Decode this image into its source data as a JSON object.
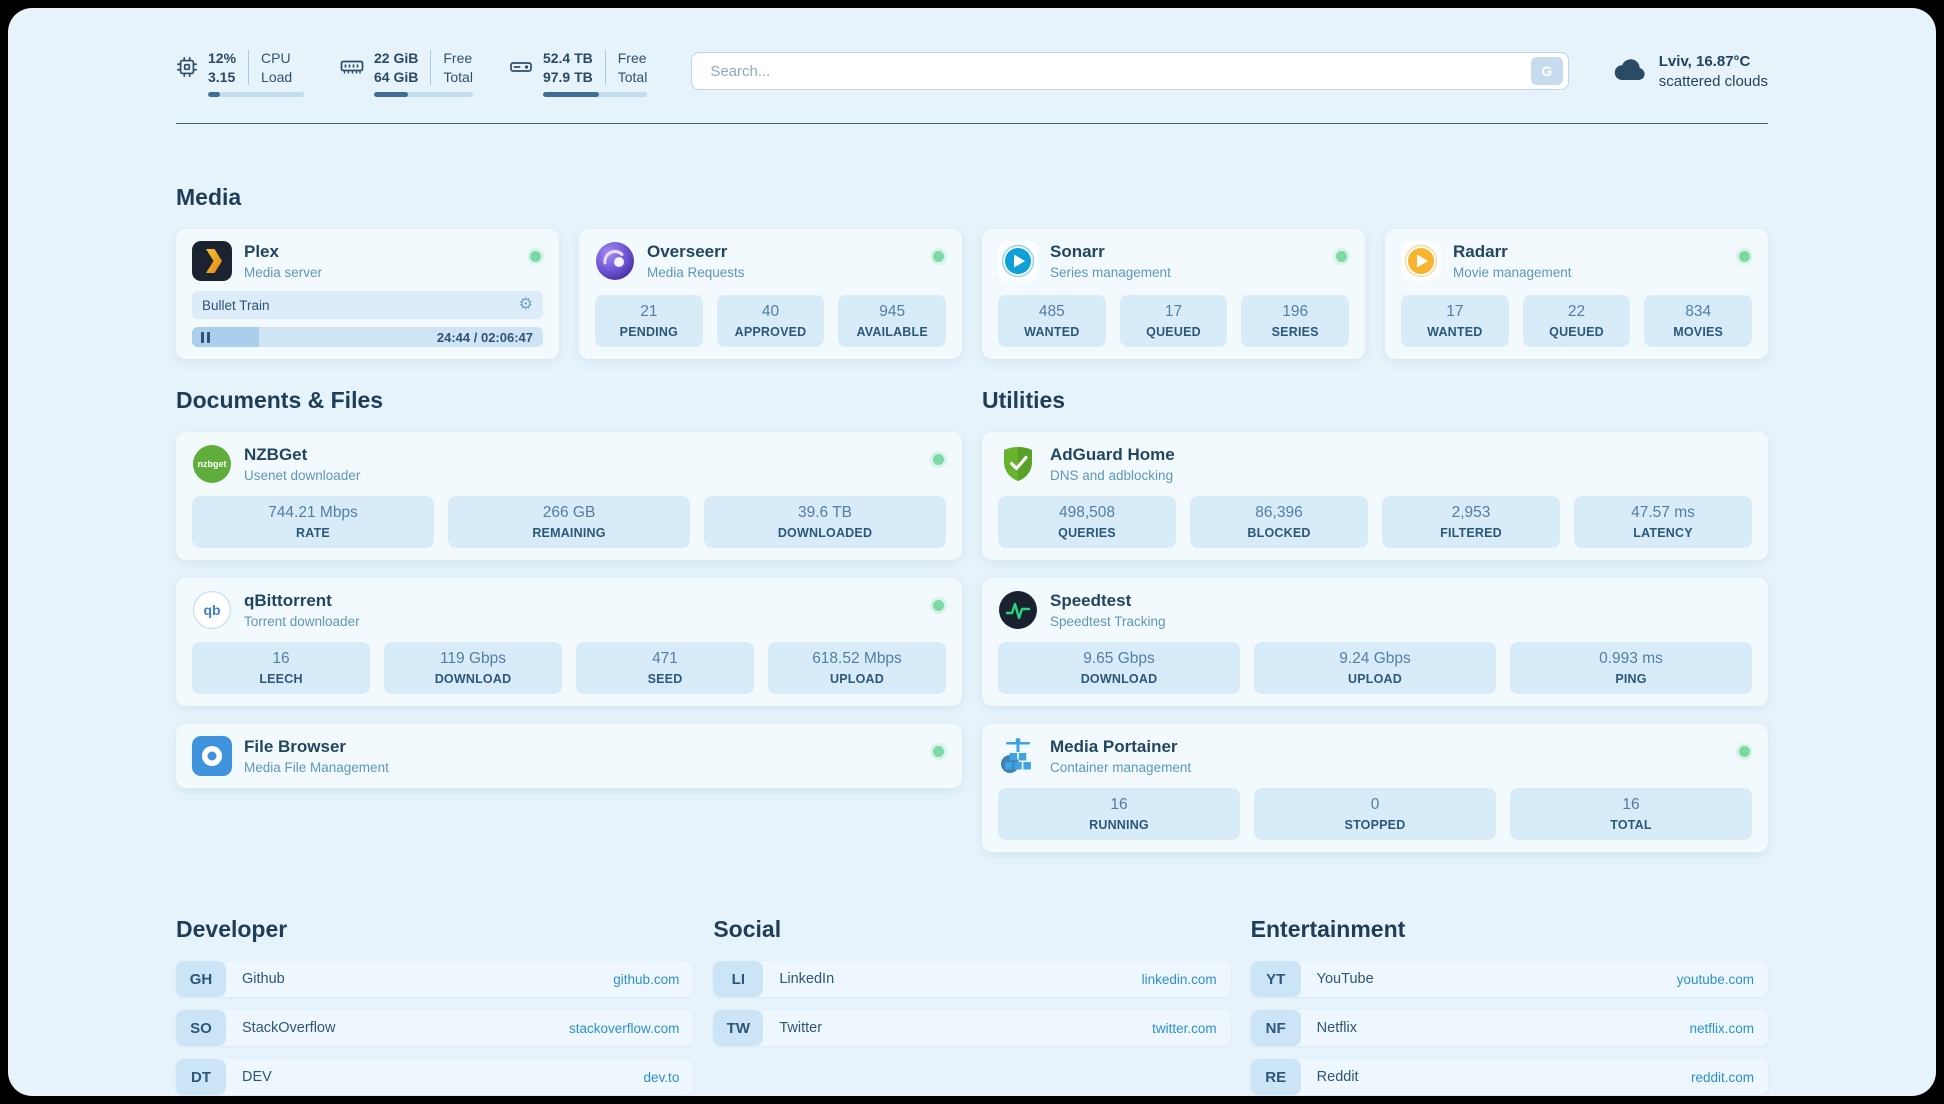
{
  "icons": {
    "gear": "⚙"
  },
  "topbar": {
    "cpu": {
      "value1": "12%",
      "value2": "3.15",
      "label1": "CPU",
      "label2": "Load",
      "percent": 12
    },
    "ram": {
      "value1": "22 GiB",
      "value2": "64 GiB",
      "label1": "Free",
      "label2": "Total",
      "percent": 34
    },
    "disk": {
      "value1": "52.4 TB",
      "value2": "97.9 TB",
      "label1": "Free",
      "label2": "Total",
      "percent": 54
    },
    "search": {
      "placeholder": "Search...",
      "button_label": "G"
    },
    "weather": {
      "location": "Lviv, 16.87°C",
      "condition": "scattered clouds"
    }
  },
  "media": {
    "title": "Media",
    "plex": {
      "name": "Plex",
      "subtitle": "Media server",
      "now_playing": "Bullet Train",
      "time": "24:44 / 02:06:47",
      "percent": 19
    },
    "overseerr": {
      "name": "Overseerr",
      "subtitle": "Media Requests",
      "stats": [
        {
          "value": "21",
          "label": "PENDING"
        },
        {
          "value": "40",
          "label": "APPROVED"
        },
        {
          "value": "945",
          "label": "AVAILABLE"
        }
      ]
    },
    "sonarr": {
      "name": "Sonarr",
      "subtitle": "Series management",
      "stats": [
        {
          "value": "485",
          "label": "WANTED"
        },
        {
          "value": "17",
          "label": "QUEUED"
        },
        {
          "value": "196",
          "label": "SERIES"
        }
      ]
    },
    "radarr": {
      "name": "Radarr",
      "subtitle": "Movie management",
      "stats": [
        {
          "value": "17",
          "label": "WANTED"
        },
        {
          "value": "22",
          "label": "QUEUED"
        },
        {
          "value": "834",
          "label": "MOVIES"
        }
      ]
    }
  },
  "documents": {
    "title": "Documents & Files",
    "nzbget": {
      "name": "NZBGet",
      "subtitle": "Usenet downloader",
      "stats": [
        {
          "value": "744.21 Mbps",
          "label": "RATE"
        },
        {
          "value": "266 GB",
          "label": "REMAINING"
        },
        {
          "value": "39.6 TB",
          "label": "DOWNLOADED"
        }
      ]
    },
    "qbittorrent": {
      "name": "qBittorrent",
      "subtitle": "Torrent downloader",
      "stats": [
        {
          "value": "16",
          "label": "LEECH"
        },
        {
          "value": "119 Gbps",
          "label": "DOWNLOAD"
        },
        {
          "value": "471",
          "label": "SEED"
        },
        {
          "value": "618.52 Mbps",
          "label": "UPLOAD"
        }
      ]
    },
    "filebrowser": {
      "name": "File Browser",
      "subtitle": "Media File Management"
    }
  },
  "utilities": {
    "title": "Utilities",
    "adguard": {
      "name": "AdGuard Home",
      "subtitle": "DNS and adblocking",
      "stats": [
        {
          "value": "498,508",
          "label": "QUERIES"
        },
        {
          "value": "86,396",
          "label": "BLOCKED"
        },
        {
          "value": "2,953",
          "label": "FILTERED"
        },
        {
          "value": "47.57 ms",
          "label": "LATENCY"
        }
      ]
    },
    "speedtest": {
      "name": "Speedtest",
      "subtitle": "Speedtest Tracking",
      "stats": [
        {
          "value": "9.65 Gbps",
          "label": "DOWNLOAD"
        },
        {
          "value": "9.24 Gbps",
          "label": "UPLOAD"
        },
        {
          "value": "0.993 ms",
          "label": "PING"
        }
      ]
    },
    "portainer": {
      "name": "Media Portainer",
      "subtitle": "Container management",
      "stats": [
        {
          "value": "16",
          "label": "RUNNING"
        },
        {
          "value": "0",
          "label": "STOPPED"
        },
        {
          "value": "16",
          "label": "TOTAL"
        }
      ]
    }
  },
  "bookmarks": {
    "developer": {
      "title": "Developer",
      "items": [
        {
          "abbr": "GH",
          "name": "Github",
          "link": "github.com"
        },
        {
          "abbr": "SO",
          "name": "StackOverflow",
          "link": "stackoverflow.com"
        },
        {
          "abbr": "DT",
          "name": "DEV",
          "link": "dev.to"
        }
      ]
    },
    "social": {
      "title": "Social",
      "items": [
        {
          "abbr": "LI",
          "name": "LinkedIn",
          "link": "linkedin.com"
        },
        {
          "abbr": "TW",
          "name": "Twitter",
          "link": "twitter.com"
        }
      ]
    },
    "entertainment": {
      "title": "Entertainment",
      "items": [
        {
          "abbr": "YT",
          "name": "YouTube",
          "link": "youtube.com"
        },
        {
          "abbr": "NF",
          "name": "Netflix",
          "link": "netflix.com"
        },
        {
          "abbr": "RE",
          "name": "Reddit",
          "link": "reddit.com"
        }
      ]
    }
  },
  "colors": {
    "status_green": "#7cd9a4",
    "link_blue": "#2d8fd0",
    "accent_fill": "#3e6e93"
  }
}
